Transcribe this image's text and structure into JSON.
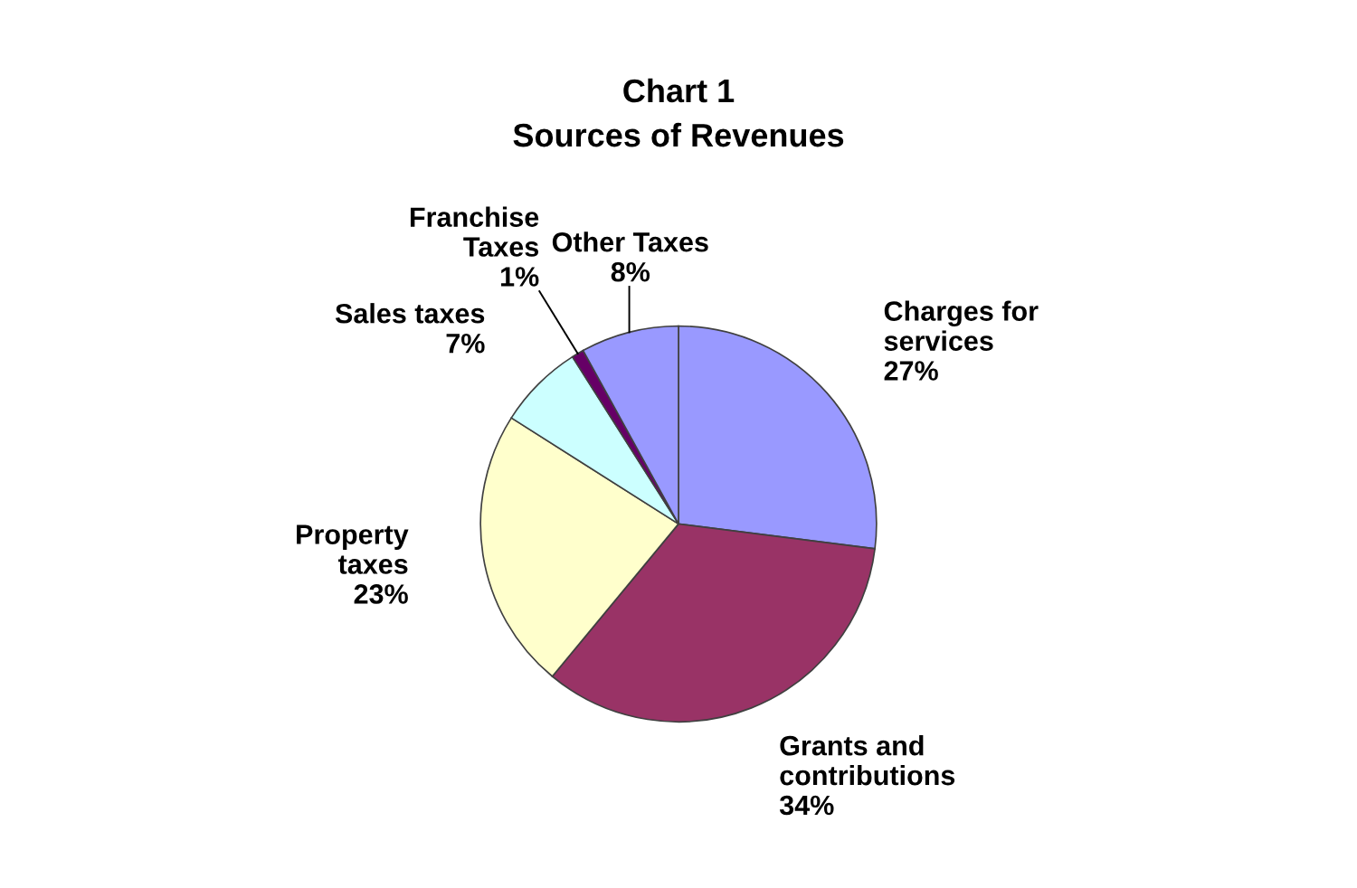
{
  "chart_data": {
    "type": "pie",
    "title": "Chart 1",
    "subtitle": "Sources of Revenues",
    "categories": [
      "Charges for\nservices",
      "Grants and\ncontributions",
      "Property\ntaxes",
      "Sales taxes",
      "Franchise\nTaxes",
      "Other Taxes"
    ],
    "values": [
      27,
      34,
      23,
      7,
      1,
      8
    ],
    "value_labels": [
      "27%",
      "34%",
      "23%",
      "7%",
      "1%",
      "8%"
    ],
    "colors": [
      "#9999ff",
      "#993366",
      "#ffffcc",
      "#ccffff",
      "#660066",
      "#9999ff"
    ],
    "legend": false
  }
}
